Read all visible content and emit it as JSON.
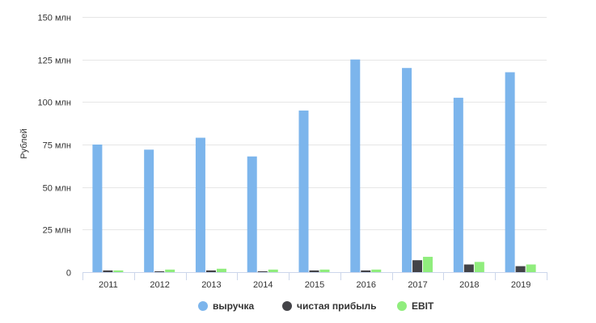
{
  "chart_data": {
    "type": "bar",
    "title": "",
    "xlabel": "",
    "ylabel": "Рублей",
    "categories": [
      "2011",
      "2012",
      "2013",
      "2014",
      "2015",
      "2016",
      "2017",
      "2018",
      "2019"
    ],
    "series": [
      {
        "name": "выручка",
        "color": "#7cb5ec",
        "values": [
          75,
          72,
          79,
          68,
          95,
          125,
          120,
          102.5,
          117.5
        ]
      },
      {
        "name": "чистая прибыль",
        "color": "#434348",
        "values": [
          1,
          0.5,
          1,
          0.5,
          1,
          1,
          7,
          4.5,
          3.5
        ]
      },
      {
        "name": "EBIT",
        "color": "#90ed7d",
        "values": [
          1,
          1.5,
          2,
          1.5,
          1.5,
          1.5,
          9,
          6,
          4.5
        ]
      }
    ],
    "ylim": [
      0,
      150
    ],
    "yticks": [
      0,
      25,
      50,
      75,
      100,
      125,
      150
    ],
    "ytick_labels": [
      "0",
      "25 млн",
      "50 млн",
      "75 млн",
      "100 млн",
      "125 млн",
      "150 млн"
    ],
    "grid": true,
    "legend_position": "bottom-center"
  }
}
